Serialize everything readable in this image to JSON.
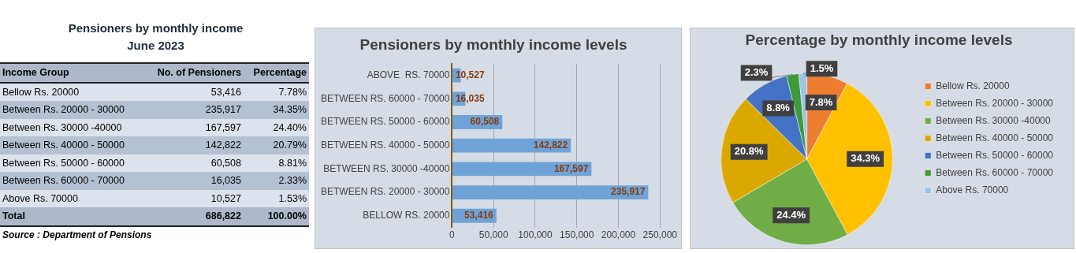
{
  "chart_data": [
    {
      "type": "other",
      "title": "Pensioners  by monthly income",
      "subtitle": "June 2023",
      "xlabel": "Income Group",
      "categories": [
        "Bellow Rs. 20000",
        "Between Rs. 20000 - 30000",
        "Between Rs. 30000 -40000",
        "Between Rs. 40000 - 50000",
        "Between Rs. 50000 - 60000",
        "Between Rs. 60000 - 70000",
        "Above Rs. 70000",
        "Total"
      ],
      "series": [
        {
          "name": "No. of Pensioners",
          "values": [
            53416,
            235917,
            167597,
            142822,
            60508,
            16035,
            10527,
            686822
          ],
          "colors": [
            "#dce3ec",
            "#b4c1d3",
            "#dce3ec",
            "#b4c1d3",
            "#dce3ec",
            "#b4c1d3",
            "#dce3ec",
            "#adb9ca"
          ],
          "value_labels": [
            "53,416",
            "235,917",
            "167,597",
            "142,822",
            "60,508",
            "16,035",
            "10,527",
            "686,822"
          ]
        },
        {
          "name": "Percentage",
          "values": [
            7.78,
            34.35,
            24.4,
            20.79,
            8.81,
            2.33,
            1.53,
            100.0
          ],
          "colors": [
            "#dce3ec",
            "#b4c1d3",
            "#dce3ec",
            "#b4c1d3",
            "#dce3ec",
            "#b4c1d3",
            "#dce3ec",
            "#adb9ca"
          ],
          "value_labels": [
            "7.78%",
            "34.35%",
            "24.40%",
            "20.79%",
            "8.81%",
            "2.33%",
            "1.53%",
            "100.00%"
          ]
        }
      ],
      "annotations": [
        "Source : Department of Pensions"
      ]
    },
    {
      "type": "bar",
      "title": "Pensioners by monthly income levels",
      "orientation": "horizontal",
      "categories": [
        "ABOVE  RS. 70000",
        "BETWEEN RS. 60000 - 70000",
        "BETWEEN RS. 50000 - 60000",
        "BETWEEN RS. 40000 - 50000",
        "BETWEEN RS. 30000 -40000",
        "BETWEEN RS. 20000 - 30000",
        "BELLOW RS. 20000"
      ],
      "values": [
        10527,
        16035,
        60508,
        142822,
        167597,
        235917,
        53416
      ],
      "color": "#6fa3d8",
      "value_labels": [
        "10,527",
        "16,035",
        "60,508",
        "142,822",
        "167,597",
        "235,917",
        "53,416"
      ],
      "xlim": [
        0,
        250000
      ],
      "xticks": [
        0,
        {
          "value": 50000,
          "label": "50,000"
        },
        {
          "value": 100000,
          "label": "100,000"
        },
        {
          "value": 150000,
          "label": "150,000"
        },
        {
          "value": 200000,
          "label": "200,000"
        },
        {
          "value": 250000,
          "label": "250,000"
        }
      ],
      "grid": "x"
    },
    {
      "type": "pie",
      "title": "Percentage by monthly income levels",
      "categories": [
        "Bellow Rs. 20000",
        "Between Rs. 20000 - 30000",
        "Between Rs. 30000 -40000",
        "Between Rs. 40000 - 50000",
        "Between Rs. 50000 - 60000",
        "Between Rs. 60000 - 70000",
        "Above Rs. 70000"
      ],
      "values": [
        7.8,
        34.3,
        24.4,
        20.8,
        8.8,
        2.3,
        1.5
      ],
      "colors": [
        "#ed7d31",
        "#ffc000",
        "#70ad47",
        "#dba800",
        "#4472c4",
        "#3f9a3a",
        "#9dc3e6"
      ],
      "value_labels": [
        "7.8%",
        "34.3%",
        "24.4%",
        "20.8%",
        "8.8%",
        "2.3%",
        "1.5%"
      ],
      "legend": "right"
    }
  ]
}
